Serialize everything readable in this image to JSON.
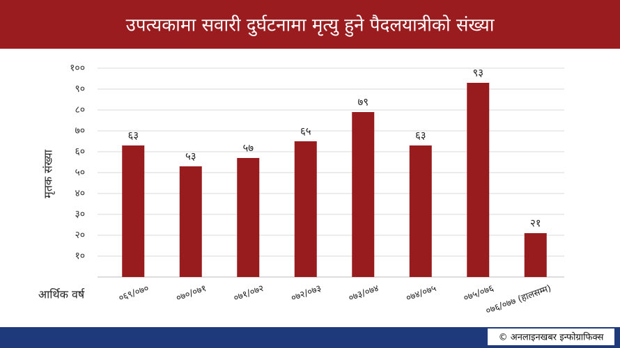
{
  "chart_data": {
    "type": "bar",
    "title": "उपत्यकामा सवारी दुर्घटनामा मृत्यु हुने पैदलयात्रीको संख्या",
    "ylabel": "मृतक संख्या",
    "xlabel": "आर्थिक वर्ष",
    "footer": "© अनलाइनखबर इन्फोग्राफिक्स",
    "categories": [
      "०६९/०७०",
      "०७०/०७१",
      "०७१/०७२",
      "०७२/०७३",
      "०७३/०७४",
      "०७४/०७५",
      "०७५/०७६",
      "०७६/०७७ (हालसम्म)"
    ],
    "values": [
      63,
      53,
      57,
      65,
      79,
      63,
      93,
      21
    ],
    "value_labels": [
      "६३",
      "५३",
      "५७",
      "६५",
      "७९",
      "६३",
      "९३",
      "२१"
    ],
    "color": "#981b1e",
    "ylim": [
      0,
      100
    ],
    "yticks": [
      {
        "value": 10,
        "label": "१०"
      },
      {
        "value": 20,
        "label": "२०"
      },
      {
        "value": 30,
        "label": "३०"
      },
      {
        "value": 40,
        "label": "४०"
      },
      {
        "value": 50,
        "label": "५०"
      },
      {
        "value": 60,
        "label": "६०"
      },
      {
        "value": 70,
        "label": "७०"
      },
      {
        "value": 80,
        "label": "८०"
      },
      {
        "value": 90,
        "label": "९०"
      },
      {
        "value": 100,
        "label": "१००"
      }
    ],
    "grid": true
  }
}
